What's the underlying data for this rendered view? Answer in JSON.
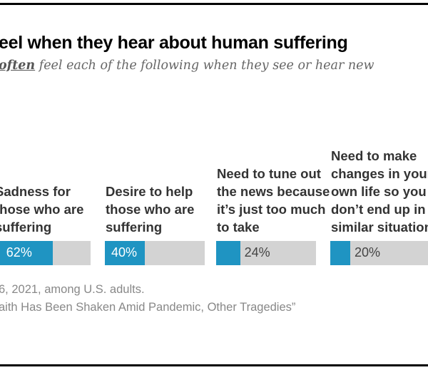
{
  "title": "eel when they hear about human suffering",
  "subtitle": {
    "emphasis": "often",
    "rest": " feel each of the following when they see or hear new"
  },
  "colors": {
    "bar_fill": "#1f94c2",
    "bar_background": "#d3d3d3"
  },
  "chart_data": {
    "type": "bar",
    "orientation": "horizontal-small-multiples",
    "categories": [
      "Sadness for those who are suffering",
      "Desire to help those who are suffering",
      "Need to tune out the news because it's just too much to take",
      "Need to make changes in your own life so you don't end up in a similar situation"
    ],
    "values": [
      62,
      40,
      24,
      20
    ],
    "value_labels": [
      "62%",
      "40%",
      "24%",
      "20%"
    ],
    "labels_visible": [
      "Sadness for those who are suffering",
      "Desire to help those who are suffering",
      "Need to tune out the news because it’s just too much to take",
      "Need to make changes in your own life so you don’t end up in a similar situation"
    ],
    "ylim": [
      0,
      100
    ]
  },
  "footer": {
    "note": "6, 2021, among U.S. adults.",
    "source": "aith Has Been Shaken Amid Pandemic, Other Tragedies”"
  }
}
